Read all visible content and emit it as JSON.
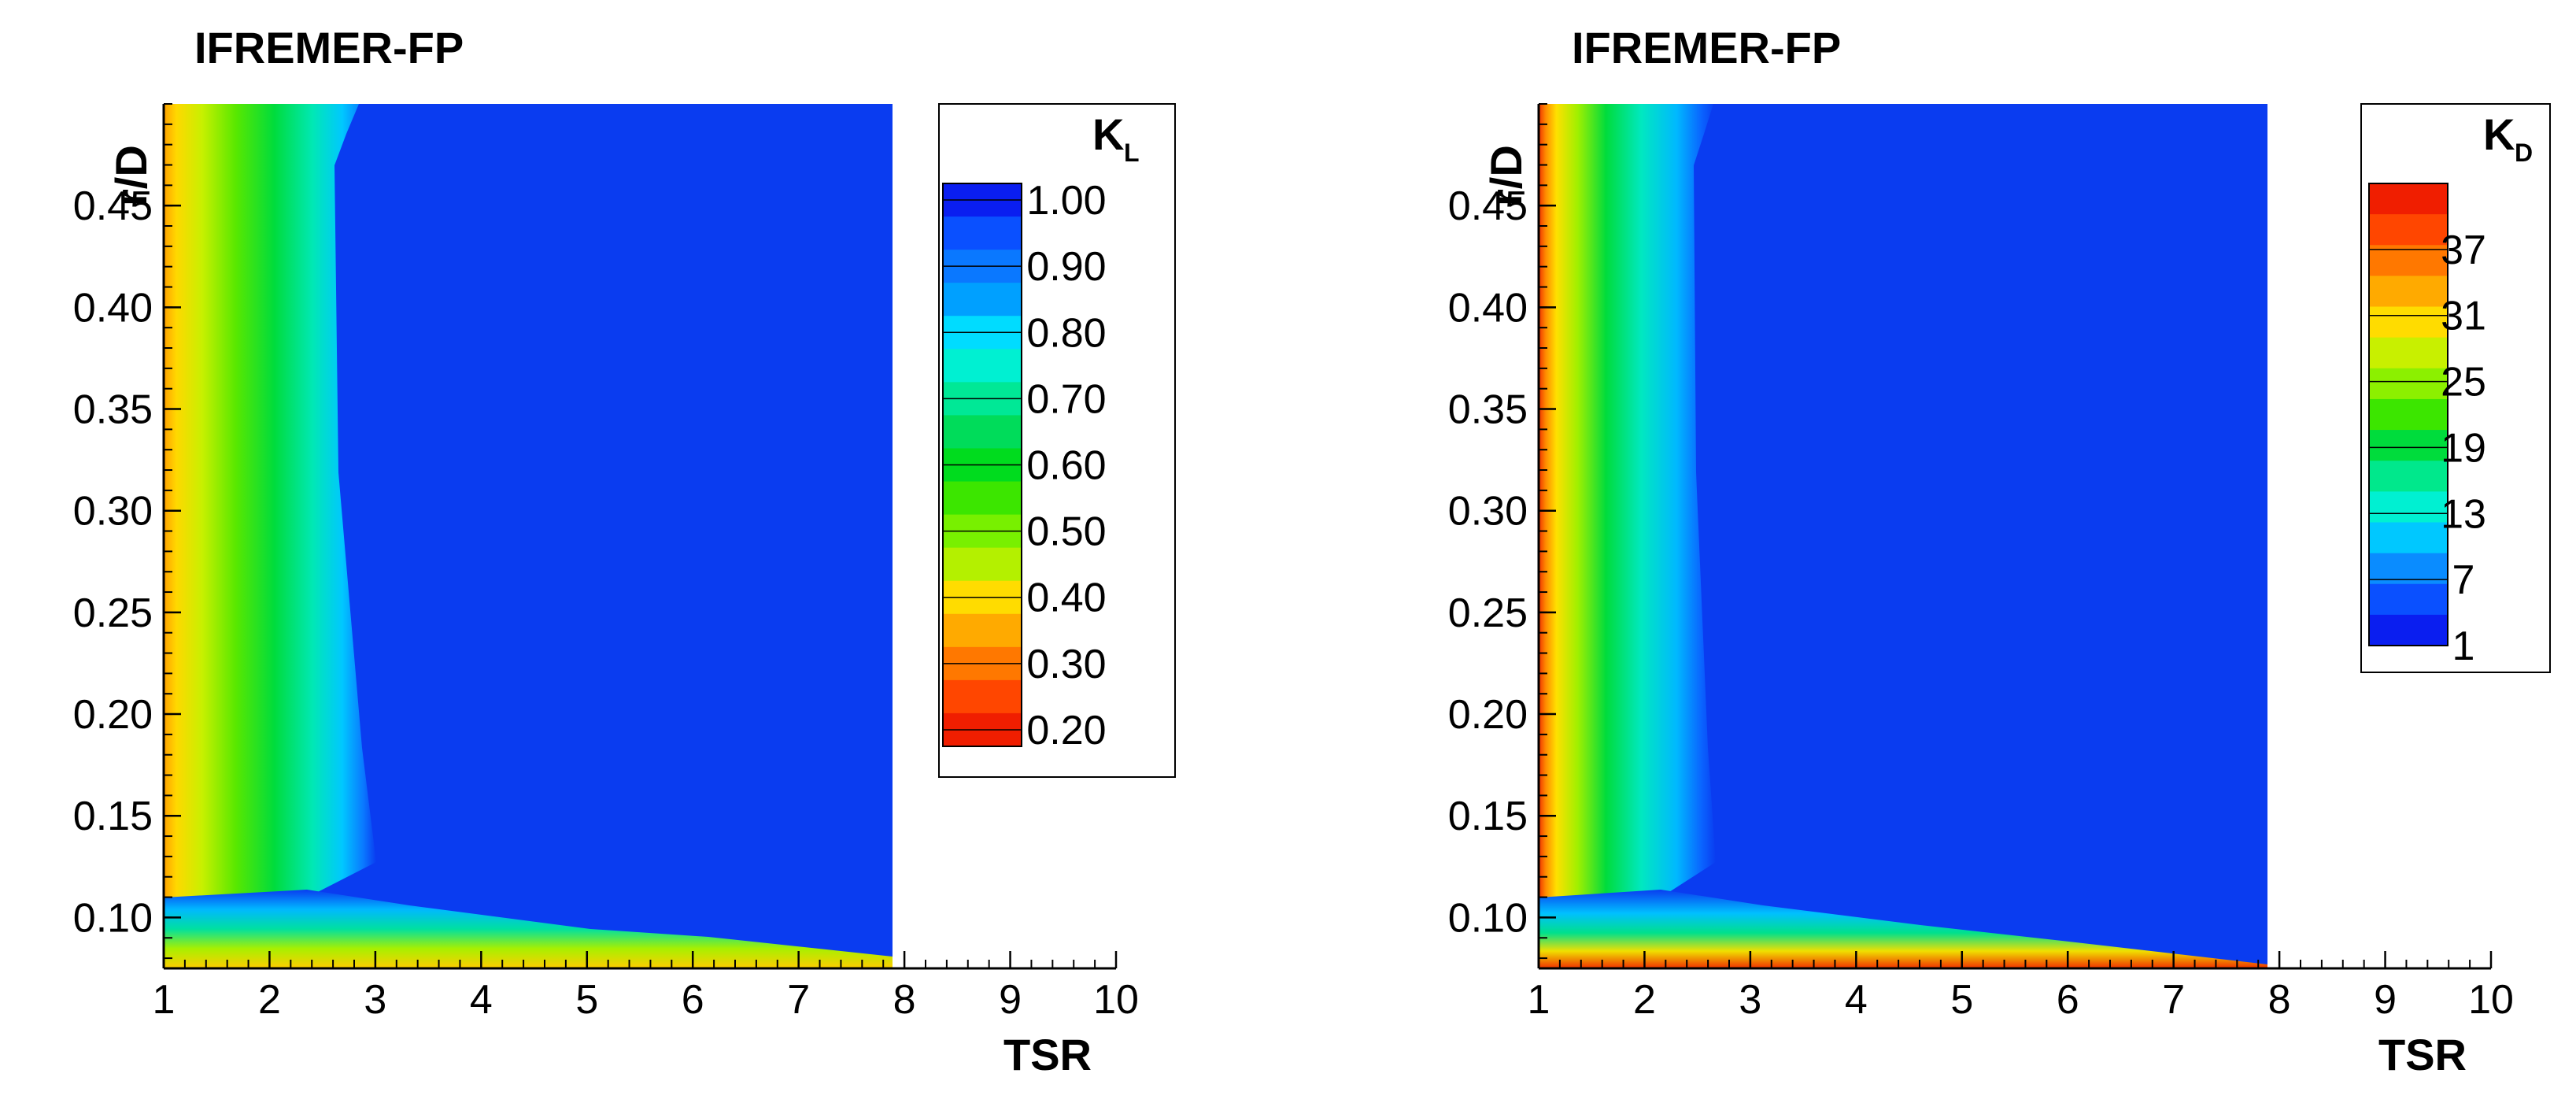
{
  "chart_data": [
    {
      "type": "heatmap",
      "title": "IFREMER-FP",
      "xlabel": "TSR",
      "ylabel": "r/D",
      "xlim": [
        1,
        10
      ],
      "ylim": [
        0.075,
        0.5
      ],
      "data_x_extent": [
        1,
        7.85
      ],
      "x_ticks": [
        "1",
        "2",
        "3",
        "4",
        "5",
        "6",
        "7",
        "8",
        "9",
        "10"
      ],
      "y_ticks": [
        "0.10",
        "0.15",
        "0.20",
        "0.25",
        "0.30",
        "0.35",
        "0.40",
        "0.45"
      ],
      "legend": {
        "title_main": "K",
        "title_sub": "L",
        "placement": "right",
        "min": 0.2,
        "max": 1.0,
        "levels": 17,
        "labels": [
          "1.00",
          "0.90",
          "0.80",
          "0.70",
          "0.60",
          "0.50",
          "0.40",
          "0.30",
          "0.20"
        ]
      },
      "field": "normalized load coefficient, lowest (0.20-0.40) at TSR 1 near r/D 0.25 and near hub, approaching 1.00 for TSR > 3"
    },
    {
      "type": "heatmap",
      "title": "IFREMER-FP",
      "xlabel": "TSR",
      "ylabel": "r/D",
      "xlim": [
        1,
        10
      ],
      "ylim": [
        0.075,
        0.5
      ],
      "data_x_extent": [
        1,
        7.85
      ],
      "x_ticks": [
        "1",
        "2",
        "3",
        "4",
        "5",
        "6",
        "7",
        "8",
        "9",
        "10"
      ],
      "y_ticks": [
        "0.10",
        "0.15",
        "0.20",
        "0.25",
        "0.30",
        "0.35",
        "0.40",
        "0.45"
      ],
      "legend": {
        "title_main": "K",
        "title_sub": "D",
        "placement": "right",
        "min": 1,
        "max": 43,
        "levels": 15,
        "labels": [
          "37",
          "31",
          "25",
          "19",
          "13",
          "7",
          "1"
        ]
      },
      "field": "drag coefficient, highest (~37-43) at TSR 1, decaying to ~1 for TSR > 2.8"
    }
  ]
}
